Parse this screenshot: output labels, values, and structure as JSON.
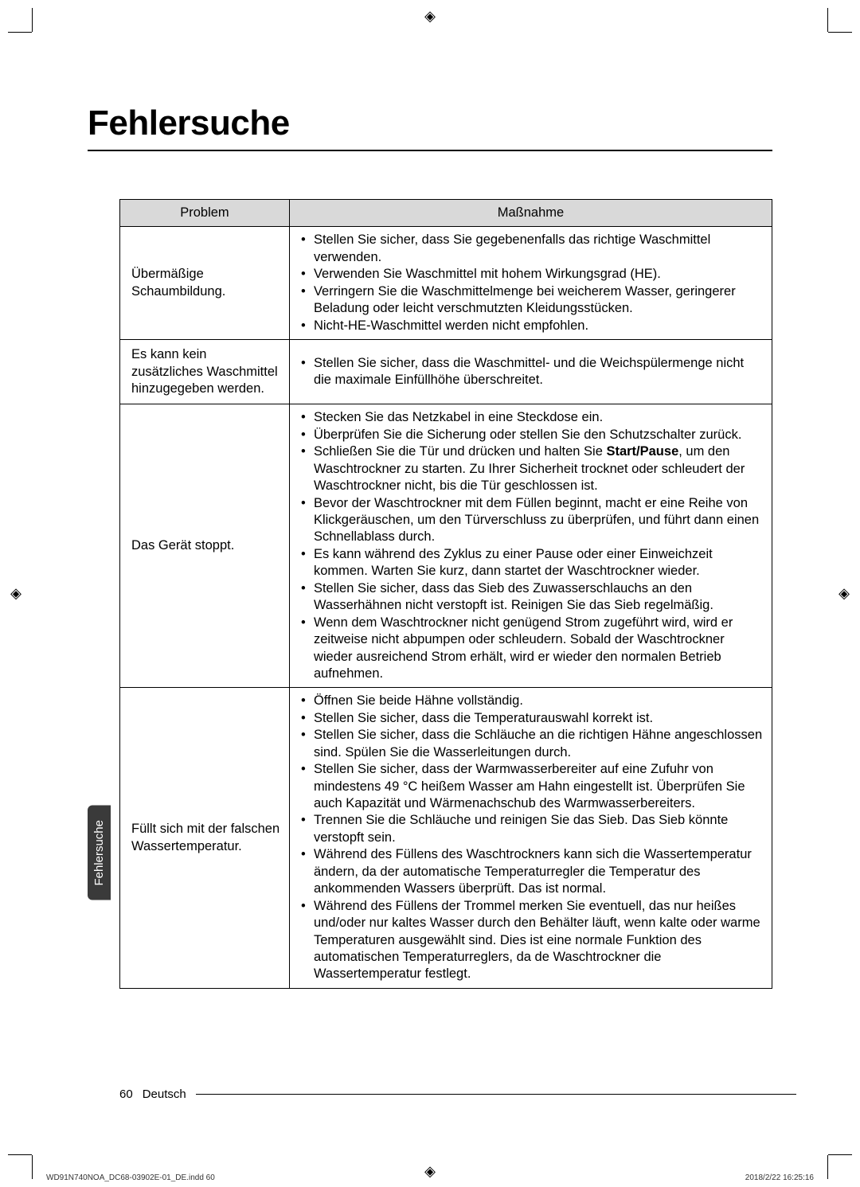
{
  "page": {
    "title": "Fehlersuche",
    "side_tab": "Fehlersuche",
    "footer_page": "60",
    "footer_lang": "Deutsch",
    "print_footer_left": "WD91N740NOA_DC68-03902E-01_DE.indd   60",
    "print_footer_right": "2018/2/22   16:25:16"
  },
  "table": {
    "header_problem": "Problem",
    "header_measure": "Maßnahme",
    "rows": [
      {
        "problem": "Übermäßige Schaumbildung.",
        "measures": [
          "Stellen Sie sicher, dass Sie gegebenenfalls das richtige Waschmittel verwenden.",
          "Verwenden Sie Waschmittel mit hohem Wirkungsgrad (HE).",
          "Verringern Sie die Waschmittelmenge bei weicherem Wasser, geringerer Beladung oder leicht verschmutzten Kleidungsstücken.",
          "Nicht-HE-Waschmittel werden nicht empfohlen."
        ]
      },
      {
        "problem": "Es kann kein zusätzliches Waschmittel hinzugegeben werden.",
        "measures": [
          "Stellen Sie sicher, dass die Waschmittel- und die Weichspülermenge nicht die maximale Einfüllhöhe überschreitet."
        ]
      },
      {
        "problem": "Das Gerät stoppt.",
        "measures": [
          "Stecken Sie das Netzkabel in eine Steckdose ein.",
          "Überprüfen Sie die Sicherung oder stellen Sie den Schutzschalter zurück.",
          "Schließen Sie die Tür und drücken und halten Sie <b>Start/Pause</b>, um den Waschtrockner zu starten. Zu Ihrer Sicherheit trocknet oder schleudert der Waschtrockner nicht, bis die Tür geschlossen ist.",
          "Bevor der Waschtrockner mit dem Füllen beginnt, macht er eine Reihe von Klickgeräuschen, um den Türverschluss zu überprüfen, und führt dann einen Schnellablass durch.",
          "Es kann während des Zyklus zu einer Pause oder einer Einweichzeit kommen. Warten Sie kurz, dann startet der Waschtrockner wieder.",
          "Stellen Sie sicher, dass das Sieb des Zuwasserschlauchs an den Wasserhähnen nicht verstopft ist. Reinigen Sie das Sieb regelmäßig.",
          "Wenn dem Waschtrockner nicht genügend Strom zugeführt wird, wird er zeitweise nicht abpumpen oder schleudern. Sobald der Waschtrockner wieder ausreichend Strom erhält, wird er wieder den normalen Betrieb aufnehmen."
        ]
      },
      {
        "problem": "Füllt sich mit der falschen Wassertemperatur.",
        "measures": [
          "Öffnen Sie beide Hähne vollständig.",
          "Stellen Sie sicher, dass die Temperaturauswahl korrekt ist.",
          "Stellen Sie sicher, dass die Schläuche an die richtigen Hähne angeschlossen sind. Spülen Sie die Wasserleitungen durch.",
          "Stellen Sie sicher, dass der Warmwasserbereiter auf eine Zufuhr von mindestens 49 °C heißem Wasser am Hahn eingestellt ist. Überprüfen Sie auch Kapazität und Wärmenachschub des Warmwasserbereiters.",
          "Trennen Sie die Schläuche und reinigen Sie das Sieb. Das Sieb könnte verstopft sein.",
          "Während des Füllens des Waschtrockners kann sich die Wassertemperatur ändern, da der automatische Temperaturregler die Temperatur des ankommenden Wassers überprüft. Das ist normal.",
          "Während des Füllens der Trommel merken Sie eventuell, das nur heißes und/oder nur kaltes Wasser durch den Behälter läuft, wenn kalte oder warme Temperaturen ausgewählt sind. Dies ist eine normale Funktion des automatischen Temperaturreglers, da de Waschtrockner die Wassertemperatur festlegt."
        ]
      }
    ]
  }
}
